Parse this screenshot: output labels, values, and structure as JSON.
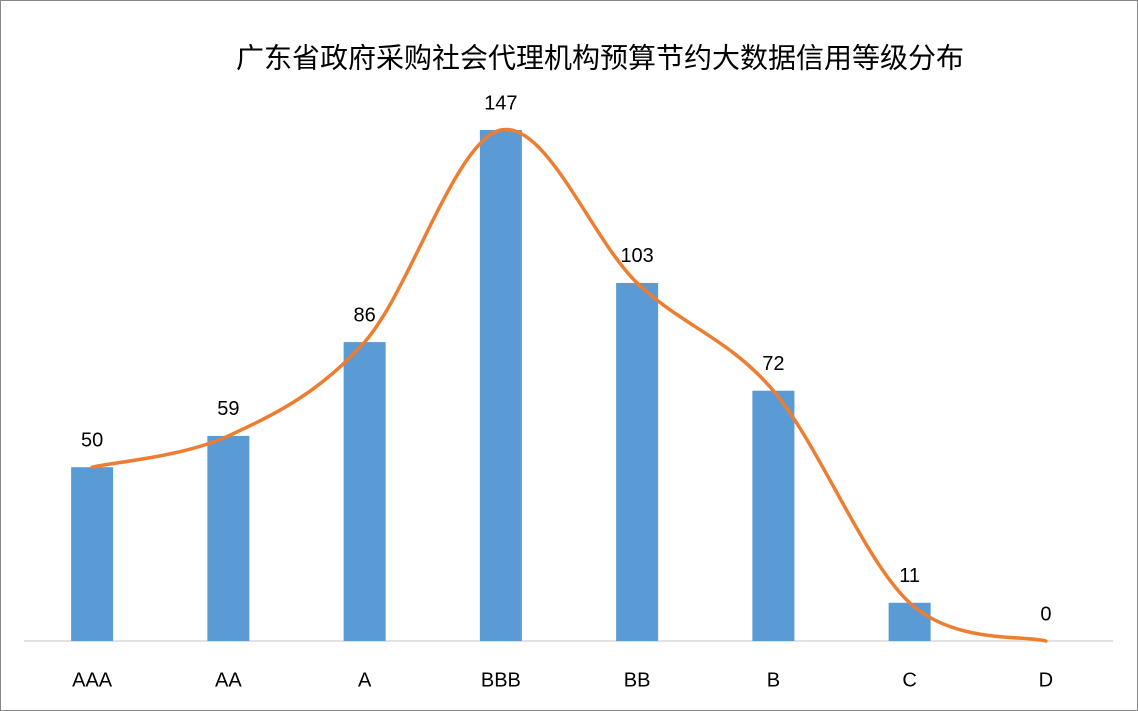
{
  "chart_data": {
    "type": "bar",
    "title": "广东省政府采购社会代理机构预算节约大数据信用等级分布",
    "categories": [
      "AAA",
      "AA",
      "A",
      "BBB",
      "BB",
      "B",
      "C",
      "D"
    ],
    "values": [
      50,
      59,
      86,
      147,
      103,
      72,
      11,
      0
    ],
    "color": "#5b9bd5",
    "smooth_line_color": "#ed7d31"
  }
}
